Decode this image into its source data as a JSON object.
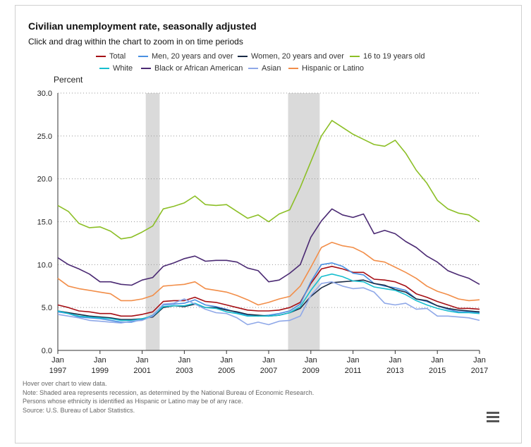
{
  "chart_data": {
    "type": "line",
    "title": "Civilian unemployment rate, seasonally adjusted",
    "subtitle": "Click and drag within the chart to zoom in on time periods",
    "ylabel": "Percent",
    "xlim": [
      1997.0,
      2017.0
    ],
    "ylim": [
      0,
      30
    ],
    "yticks": [
      "0.0",
      "5.0",
      "10.0",
      "15.0",
      "20.0",
      "25.0",
      "30.0"
    ],
    "xticks": [
      {
        "year": 1997,
        "top": "Jan",
        "bottom": "1997"
      },
      {
        "year": 1999,
        "top": "Jan",
        "bottom": "1999"
      },
      {
        "year": 2001,
        "top": "Jan",
        "bottom": "2001"
      },
      {
        "year": 2003,
        "top": "Jan",
        "bottom": "2003"
      },
      {
        "year": 2005,
        "top": "Jan",
        "bottom": "2005"
      },
      {
        "year": 2007,
        "top": "Jan",
        "bottom": "2007"
      },
      {
        "year": 2009,
        "top": "Jan",
        "bottom": "2009"
      },
      {
        "year": 2011,
        "top": "Jan",
        "bottom": "2011"
      },
      {
        "year": 2013,
        "top": "Jan",
        "bottom": "2013"
      },
      {
        "year": 2015,
        "top": "Jan",
        "bottom": "2015"
      },
      {
        "year": 2017,
        "top": "Jan",
        "bottom": "2017"
      }
    ],
    "recessions": [
      [
        2001.17,
        2001.83
      ],
      [
        2007.92,
        2009.42
      ]
    ],
    "grid": true,
    "legend_position": "top",
    "x": [
      1997.0,
      1997.5,
      1998.0,
      1998.5,
      1999.0,
      1999.5,
      2000.0,
      2000.5,
      2001.0,
      2001.5,
      2002.0,
      2002.5,
      2003.0,
      2003.5,
      2004.0,
      2004.5,
      2005.0,
      2005.5,
      2006.0,
      2006.5,
      2007.0,
      2007.5,
      2008.0,
      2008.5,
      2009.0,
      2009.5,
      2010.0,
      2010.5,
      2011.0,
      2011.5,
      2012.0,
      2012.5,
      2013.0,
      2013.5,
      2014.0,
      2014.5,
      2015.0,
      2015.5,
      2016.0,
      2016.5,
      2017.0
    ],
    "series": [
      {
        "name": "Total",
        "color": "#a50f15",
        "values": [
          5.3,
          5.0,
          4.6,
          4.5,
          4.3,
          4.3,
          4.0,
          4.0,
          4.2,
          4.5,
          5.7,
          5.8,
          5.8,
          6.2,
          5.7,
          5.6,
          5.3,
          5.0,
          4.7,
          4.6,
          4.6,
          4.7,
          5.0,
          5.6,
          7.8,
          9.5,
          9.8,
          9.5,
          9.1,
          9.1,
          8.3,
          8.2,
          8.0,
          7.5,
          6.6,
          6.2,
          5.7,
          5.3,
          4.9,
          4.9,
          4.8
        ]
      },
      {
        "name": "Men, 20 years and over",
        "color": "#4a90e2",
        "values": [
          4.5,
          4.3,
          3.9,
          3.8,
          3.7,
          3.5,
          3.3,
          3.3,
          3.6,
          4.1,
          5.3,
          5.4,
          5.5,
          5.9,
          5.3,
          5.1,
          4.8,
          4.4,
          4.1,
          4.0,
          4.1,
          4.3,
          4.6,
          5.4,
          8.0,
          10.0,
          10.2,
          9.8,
          9.0,
          8.8,
          7.8,
          7.5,
          7.3,
          7.0,
          6.0,
          5.7,
          5.2,
          4.8,
          4.5,
          4.5,
          4.4
        ]
      },
      {
        "name": "Women, 20 years and over",
        "color": "#1a2b45",
        "values": [
          4.6,
          4.4,
          4.2,
          4.0,
          3.9,
          3.8,
          3.6,
          3.6,
          3.7,
          3.9,
          5.0,
          5.2,
          5.1,
          5.4,
          5.0,
          5.0,
          4.7,
          4.5,
          4.2,
          4.1,
          4.0,
          4.1,
          4.4,
          4.9,
          6.3,
          7.3,
          7.9,
          8.0,
          8.1,
          8.2,
          7.8,
          7.6,
          7.1,
          6.8,
          6.0,
          5.8,
          5.2,
          4.9,
          4.7,
          4.6,
          4.5
        ]
      },
      {
        "name": "16 to 19 years old",
        "color": "#8cbf26",
        "values": [
          16.9,
          16.2,
          14.8,
          14.3,
          14.4,
          13.9,
          13.0,
          13.2,
          13.8,
          14.5,
          16.5,
          16.8,
          17.2,
          18.0,
          17.0,
          16.9,
          17.0,
          16.2,
          15.4,
          15.8,
          15.0,
          15.9,
          16.4,
          19.0,
          22.0,
          25.0,
          26.8,
          26.0,
          25.2,
          24.6,
          24.0,
          23.8,
          24.5,
          23.0,
          21.0,
          19.5,
          17.5,
          16.5,
          16.0,
          15.8,
          15.0
        ]
      },
      {
        "name": "White",
        "color": "#17becf",
        "values": [
          4.6,
          4.3,
          4.0,
          3.9,
          3.8,
          3.7,
          3.5,
          3.5,
          3.7,
          4.0,
          5.1,
          5.2,
          5.2,
          5.5,
          5.0,
          4.9,
          4.5,
          4.3,
          4.0,
          4.0,
          4.0,
          4.1,
          4.4,
          5.1,
          7.0,
          8.6,
          8.9,
          8.6,
          8.1,
          8.0,
          7.4,
          7.2,
          7.0,
          6.5,
          5.8,
          5.3,
          4.9,
          4.6,
          4.4,
          4.4,
          4.3
        ]
      },
      {
        "name": "Black or African American",
        "color": "#4b2a73",
        "values": [
          10.8,
          10.0,
          9.5,
          8.9,
          8.0,
          8.0,
          7.7,
          7.6,
          8.2,
          8.5,
          9.8,
          10.2,
          10.7,
          11.0,
          10.4,
          10.5,
          10.5,
          10.3,
          9.6,
          9.3,
          8.0,
          8.2,
          9.0,
          10.0,
          13.2,
          15.1,
          16.5,
          15.8,
          15.5,
          15.9,
          13.6,
          14.0,
          13.6,
          12.7,
          12.0,
          11.0,
          10.3,
          9.3,
          8.8,
          8.4,
          7.7
        ]
      },
      {
        "name": "Asian",
        "color": "#8fa8e8",
        "values": [
          4.2,
          4.0,
          3.8,
          3.5,
          3.4,
          3.3,
          3.2,
          3.4,
          3.5,
          4.0,
          5.4,
          5.5,
          6.0,
          5.4,
          4.8,
          4.4,
          4.3,
          3.8,
          3.0,
          3.3,
          3.0,
          3.4,
          3.5,
          4.0,
          6.4,
          7.8,
          8.0,
          7.5,
          7.2,
          7.3,
          6.8,
          5.5,
          5.3,
          5.5,
          4.8,
          4.9,
          4.0,
          4.0,
          3.9,
          3.8,
          3.5
        ]
      },
      {
        "name": "Hispanic or Latino",
        "color": "#f28e49",
        "values": [
          8.4,
          7.5,
          7.2,
          7.0,
          6.8,
          6.6,
          5.8,
          5.8,
          6.0,
          6.4,
          7.5,
          7.6,
          7.7,
          8.0,
          7.2,
          7.0,
          6.8,
          6.4,
          5.9,
          5.3,
          5.6,
          6.0,
          6.3,
          7.5,
          9.7,
          12.0,
          12.6,
          12.2,
          12.0,
          11.4,
          10.5,
          10.3,
          9.7,
          9.1,
          8.4,
          7.5,
          6.9,
          6.5,
          6.0,
          5.8,
          5.9
        ]
      }
    ]
  },
  "notes": [
    "Hover over chart to view data.",
    "Note: Shaded area represents recession, as determined by the National Bureau of Economic Research.",
    "Persons whose ethnicity is identified as Hispanic or Latino may be of any race.",
    "Source: U.S. Bureau of Labor Statistics."
  ],
  "menu_icon": "hamburger-menu-icon"
}
